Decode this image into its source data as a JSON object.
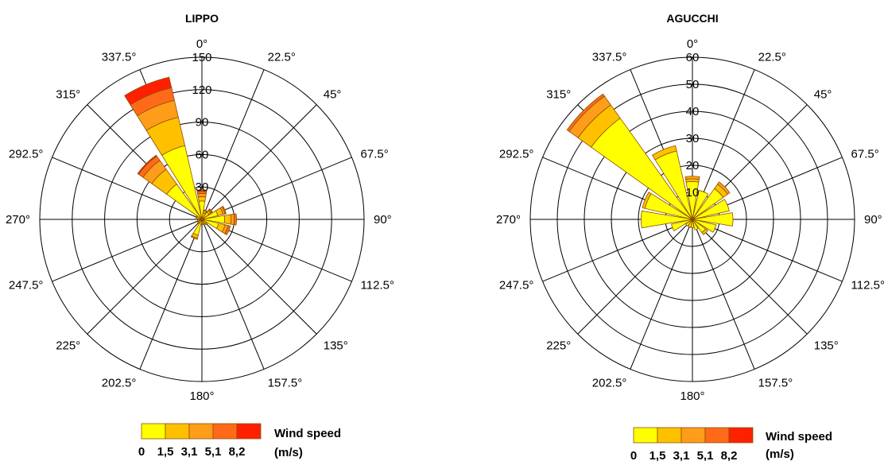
{
  "chart_data": [
    {
      "type": "polar-bar",
      "title": "LIPPO",
      "direction_labels": [
        "0°",
        "22.5°",
        "45°",
        "67.5°",
        "90°",
        "112.5°",
        "135°",
        "157.5°",
        "180°",
        "202.5°",
        "225°",
        "247.5°",
        "270°",
        "292.5°",
        "315°",
        "337.5°"
      ],
      "radial_ticks": [
        "30",
        "60",
        "90",
        "120",
        "150"
      ],
      "rmax": 150,
      "bins": [
        {
          "dir": 0,
          "cumulative": [
            17,
            21,
            24,
            26,
            27
          ]
        },
        {
          "dir": 22.5,
          "cumulative": [
            6,
            8,
            9,
            9,
            9
          ]
        },
        {
          "dir": 45,
          "cumulative": [
            8,
            10,
            11,
            12,
            12
          ]
        },
        {
          "dir": 67.5,
          "cumulative": [
            15,
            20,
            22,
            23,
            23
          ]
        },
        {
          "dir": 90,
          "cumulative": [
            21,
            27,
            30,
            32,
            32
          ]
        },
        {
          "dir": 112.5,
          "cumulative": [
            16,
            22,
            25,
            27,
            27
          ]
        },
        {
          "dir": 135,
          "cumulative": [
            5,
            6,
            6,
            6,
            6
          ]
        },
        {
          "dir": 157.5,
          "cumulative": [
            4,
            5,
            5,
            5,
            5
          ]
        },
        {
          "dir": 180,
          "cumulative": [
            4,
            5,
            5,
            5,
            5
          ]
        },
        {
          "dir": 202.5,
          "cumulative": [
            15,
            18,
            19,
            19,
            19
          ]
        },
        {
          "dir": 225,
          "cumulative": [
            4,
            5,
            5,
            5,
            5
          ]
        },
        {
          "dir": 247.5,
          "cumulative": [
            3,
            4,
            4,
            4,
            4
          ]
        },
        {
          "dir": 270,
          "cumulative": [
            3,
            4,
            4,
            4,
            4
          ]
        },
        {
          "dir": 292.5,
          "cumulative": [
            5,
            6,
            6,
            6,
            6
          ]
        },
        {
          "dir": 315,
          "cumulative": [
            40,
            57,
            67,
            72,
            73
          ]
        },
        {
          "dir": 337.5,
          "cumulative": [
            70,
            97,
            113,
            125,
            135
          ]
        }
      ]
    },
    {
      "type": "polar-bar",
      "title": "AGUCCHI",
      "direction_labels": [
        "0°",
        "22.5°",
        "45°",
        "67.5°",
        "90°",
        "112.5°",
        "135°",
        "157.5°",
        "180°",
        "202.5°",
        "225°",
        "247.5°",
        "270°",
        "292.5°",
        "315°",
        "337.5°"
      ],
      "radial_ticks": [
        "10",
        "20",
        "30",
        "40",
        "50",
        "60"
      ],
      "rmax": 60,
      "bins": [
        {
          "dir": 0,
          "cumulative": [
            14,
            15,
            16,
            16,
            16
          ]
        },
        {
          "dir": 22.5,
          "cumulative": [
            11,
            11,
            11,
            11,
            11
          ]
        },
        {
          "dir": 45,
          "cumulative": [
            14,
            16,
            17,
            17,
            17
          ]
        },
        {
          "dir": 67.5,
          "cumulative": [
            14,
            14,
            14,
            14,
            14
          ]
        },
        {
          "dir": 90,
          "cumulative": [
            15,
            15,
            15,
            15,
            15
          ]
        },
        {
          "dir": 112.5,
          "cumulative": [
            9,
            9,
            9,
            9,
            9
          ]
        },
        {
          "dir": 135,
          "cumulative": [
            6,
            7,
            7,
            7,
            7
          ]
        },
        {
          "dir": 157.5,
          "cumulative": [
            4,
            4,
            4,
            4,
            4
          ]
        },
        {
          "dir": 180,
          "cumulative": [
            3,
            3,
            3,
            3,
            3
          ]
        },
        {
          "dir": 202.5,
          "cumulative": [
            3,
            3,
            3,
            3,
            3
          ]
        },
        {
          "dir": 225,
          "cumulative": [
            3,
            3,
            3,
            3,
            3
          ]
        },
        {
          "dir": 247.5,
          "cumulative": [
            8,
            8,
            8,
            8,
            8
          ]
        },
        {
          "dir": 270,
          "cumulative": [
            19,
            19,
            19,
            19,
            19
          ]
        },
        {
          "dir": 292.5,
          "cumulative": [
            18,
            19,
            19,
            19,
            19
          ]
        },
        {
          "dir": 315,
          "cumulative": [
            46,
            52,
            56,
            57,
            57
          ]
        },
        {
          "dir": 337.5,
          "cumulative": [
            26,
            28,
            28,
            28,
            28
          ]
        }
      ]
    }
  ],
  "legend": {
    "title": "Wind speed",
    "unit": "(m/s)",
    "ticks": [
      "0",
      "1,5",
      "3,1",
      "5,1",
      "8,2"
    ],
    "colors": [
      "#ffff00",
      "#ffc000",
      "#ff9d1a",
      "#ff6a1a",
      "#ff2000"
    ]
  },
  "grid_color": "#000000",
  "bar_edge_color": "#8a5000"
}
